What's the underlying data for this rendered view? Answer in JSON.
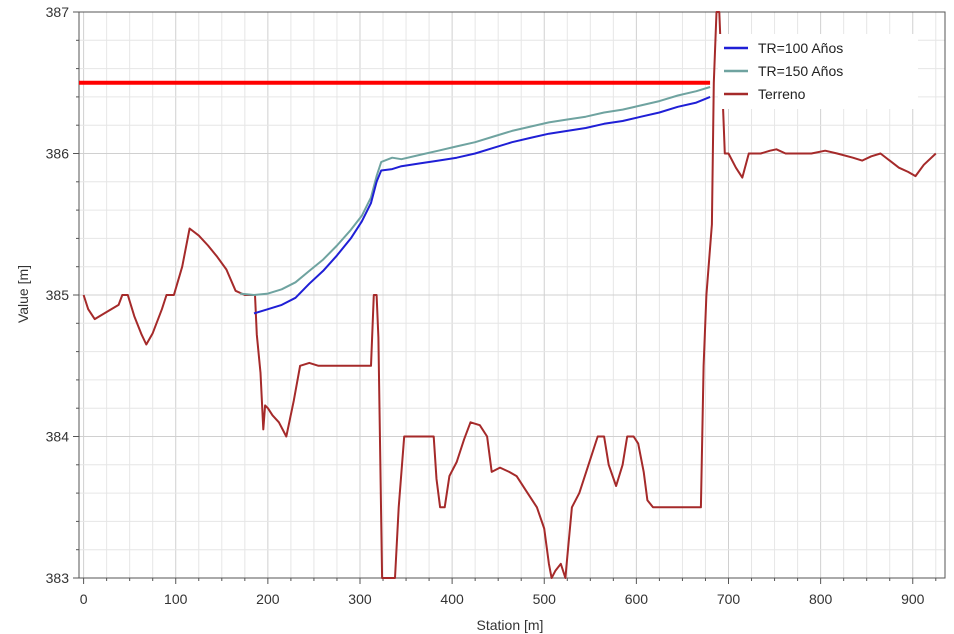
{
  "chart_data": {
    "type": "line",
    "title": "",
    "xlabel": "Station [m]",
    "ylabel": "Value [m]",
    "xlim": [
      -5,
      935
    ],
    "ylim": [
      383,
      387
    ],
    "x_ticks": [
      0,
      100,
      200,
      300,
      400,
      500,
      600,
      700,
      800,
      900
    ],
    "y_ticks": [
      383,
      384,
      385,
      386,
      387
    ],
    "grid": true,
    "legend_position": "top-right",
    "reference_line": {
      "y": 386.5,
      "x_start": -5,
      "x_end": 680,
      "color": "#ff0000"
    },
    "series": [
      {
        "name": "TR=100 Años",
        "color": "#1f1fd6",
        "points": [
          [
            185,
            384.87
          ],
          [
            200,
            384.9
          ],
          [
            215,
            384.93
          ],
          [
            230,
            384.98
          ],
          [
            245,
            385.08
          ],
          [
            260,
            385.17
          ],
          [
            275,
            385.28
          ],
          [
            290,
            385.4
          ],
          [
            302,
            385.52
          ],
          [
            312,
            385.65
          ],
          [
            318,
            385.8
          ],
          [
            323,
            385.88
          ],
          [
            335,
            385.89
          ],
          [
            345,
            385.91
          ],
          [
            365,
            385.93
          ],
          [
            385,
            385.95
          ],
          [
            405,
            385.97
          ],
          [
            425,
            386.0
          ],
          [
            445,
            386.04
          ],
          [
            465,
            386.08
          ],
          [
            485,
            386.11
          ],
          [
            505,
            386.14
          ],
          [
            525,
            386.16
          ],
          [
            545,
            386.18
          ],
          [
            565,
            386.21
          ],
          [
            585,
            386.23
          ],
          [
            605,
            386.26
          ],
          [
            625,
            386.29
          ],
          [
            645,
            386.33
          ],
          [
            665,
            386.36
          ],
          [
            680,
            386.4
          ]
        ]
      },
      {
        "name": "TR=150 Años",
        "color": "#6fa3a0",
        "points": [
          [
            170,
            385.01
          ],
          [
            185,
            385.0
          ],
          [
            200,
            385.01
          ],
          [
            215,
            385.04
          ],
          [
            230,
            385.09
          ],
          [
            245,
            385.17
          ],
          [
            260,
            385.25
          ],
          [
            275,
            385.35
          ],
          [
            290,
            385.46
          ],
          [
            302,
            385.56
          ],
          [
            312,
            385.69
          ],
          [
            318,
            385.84
          ],
          [
            323,
            385.94
          ],
          [
            335,
            385.97
          ],
          [
            345,
            385.96
          ],
          [
            365,
            385.99
          ],
          [
            385,
            386.02
          ],
          [
            405,
            386.05
          ],
          [
            425,
            386.08
          ],
          [
            445,
            386.12
          ],
          [
            465,
            386.16
          ],
          [
            485,
            386.19
          ],
          [
            505,
            386.22
          ],
          [
            525,
            386.24
          ],
          [
            545,
            386.26
          ],
          [
            565,
            386.29
          ],
          [
            585,
            386.31
          ],
          [
            605,
            386.34
          ],
          [
            625,
            386.37
          ],
          [
            645,
            386.41
          ],
          [
            665,
            386.44
          ],
          [
            680,
            386.47
          ]
        ]
      },
      {
        "name": "Terreno",
        "color": "#a52a2a",
        "points": [
          [
            0,
            385.0
          ],
          [
            5,
            384.9
          ],
          [
            12,
            384.83
          ],
          [
            25,
            384.88
          ],
          [
            38,
            384.93
          ],
          [
            42,
            385.0
          ],
          [
            48,
            385.0
          ],
          [
            55,
            384.85
          ],
          [
            63,
            384.72
          ],
          [
            68,
            384.65
          ],
          [
            75,
            384.73
          ],
          [
            85,
            384.9
          ],
          [
            90,
            385.0
          ],
          [
            98,
            385.0
          ],
          [
            107,
            385.2
          ],
          [
            115,
            385.47
          ],
          [
            125,
            385.42
          ],
          [
            135,
            385.35
          ],
          [
            145,
            385.27
          ],
          [
            155,
            385.18
          ],
          [
            165,
            385.03
          ],
          [
            175,
            385.0
          ],
          [
            186,
            385.0
          ],
          [
            188,
            384.72
          ],
          [
            192,
            384.45
          ],
          [
            195,
            384.05
          ],
          [
            197,
            384.22
          ],
          [
            200,
            384.2
          ],
          [
            205,
            384.15
          ],
          [
            212,
            384.1
          ],
          [
            220,
            384.0
          ],
          [
            228,
            384.25
          ],
          [
            235,
            384.5
          ],
          [
            245,
            384.52
          ],
          [
            255,
            384.5
          ],
          [
            275,
            384.5
          ],
          [
            290,
            384.5
          ],
          [
            305,
            384.5
          ],
          [
            312,
            384.5
          ],
          [
            315,
            385.0
          ],
          [
            318,
            385.0
          ],
          [
            320,
            384.7
          ],
          [
            324,
            383.0
          ],
          [
            332,
            383.0
          ],
          [
            338,
            383.0
          ],
          [
            342,
            383.5
          ],
          [
            348,
            384.0
          ],
          [
            360,
            384.0
          ],
          [
            375,
            384.0
          ],
          [
            380,
            384.0
          ],
          [
            383,
            383.7
          ],
          [
            387,
            383.5
          ],
          [
            392,
            383.5
          ],
          [
            397,
            383.72
          ],
          [
            405,
            383.82
          ],
          [
            413,
            383.98
          ],
          [
            420,
            384.1
          ],
          [
            430,
            384.08
          ],
          [
            438,
            384.0
          ],
          [
            443,
            383.75
          ],
          [
            452,
            383.78
          ],
          [
            462,
            383.75
          ],
          [
            470,
            383.72
          ],
          [
            480,
            383.62
          ],
          [
            492,
            383.5
          ],
          [
            500,
            383.35
          ],
          [
            505,
            383.1
          ],
          [
            508,
            383.0
          ],
          [
            512,
            383.05
          ],
          [
            518,
            383.1
          ],
          [
            523,
            383.0
          ],
          [
            525,
            383.15
          ],
          [
            530,
            383.5
          ],
          [
            538,
            383.6
          ],
          [
            548,
            383.8
          ],
          [
            558,
            384.0
          ],
          [
            565,
            384.0
          ],
          [
            570,
            383.8
          ],
          [
            578,
            383.65
          ],
          [
            585,
            383.8
          ],
          [
            590,
            384.0
          ],
          [
            597,
            384.0
          ],
          [
            602,
            383.95
          ],
          [
            608,
            383.75
          ],
          [
            612,
            383.55
          ],
          [
            618,
            383.5
          ],
          [
            625,
            383.5
          ],
          [
            640,
            383.5
          ],
          [
            655,
            383.5
          ],
          [
            670,
            383.5
          ],
          [
            673,
            384.5
          ],
          [
            676,
            385.0
          ],
          [
            682,
            385.5
          ],
          [
            684,
            386.5
          ],
          [
            687,
            387.0
          ],
          [
            690,
            387.0
          ],
          [
            693,
            386.5
          ],
          [
            696,
            386.0
          ],
          [
            700,
            386.0
          ],
          [
            708,
            385.9
          ],
          [
            715,
            385.83
          ],
          [
            722,
            386.0
          ],
          [
            735,
            386.0
          ],
          [
            745,
            386.02
          ],
          [
            752,
            386.03
          ],
          [
            762,
            386.0
          ],
          [
            775,
            386.0
          ],
          [
            790,
            386.0
          ],
          [
            805,
            386.02
          ],
          [
            818,
            386.0
          ],
          [
            835,
            385.97
          ],
          [
            845,
            385.95
          ],
          [
            855,
            385.98
          ],
          [
            865,
            386.0
          ],
          [
            875,
            385.95
          ],
          [
            885,
            385.9
          ],
          [
            895,
            385.87
          ],
          [
            903,
            385.84
          ],
          [
            912,
            385.92
          ],
          [
            925,
            386.0
          ]
        ]
      }
    ]
  }
}
